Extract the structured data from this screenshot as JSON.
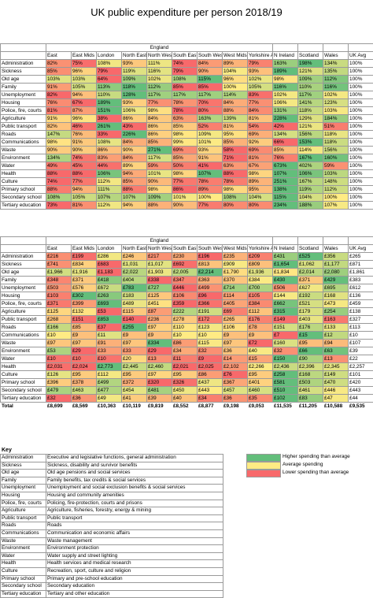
{
  "title": "UK public expenditure per person 2018/19",
  "group_label": "England",
  "columns": [
    "East",
    "East Mids",
    "London",
    "North East",
    "North West",
    "South East",
    "South West",
    "West Mids",
    "Yorkshire ATH",
    "N Ireland",
    "Scotland",
    "Wales",
    "UK Avg"
  ],
  "colors": {
    "high": "#63be7b",
    "average": "#ffeb84",
    "low": "#f8696b"
  },
  "legend": [
    {
      "label": "Higher spending than average",
      "color": "#63be7b"
    },
    {
      "label": "Average spending",
      "color": "#ffeb84"
    },
    {
      "label": "Lower spending than average",
      "color": "#f8696b"
    }
  ],
  "chart_data": [
    {
      "type": "table",
      "title": "UK public expenditure per person 2018/19",
      "columns": [
        "East",
        "East Mids",
        "London",
        "North East",
        "North West",
        "South East",
        "South West",
        "West Mids",
        "Yorkshire ATH",
        "N Ireland",
        "Scotland",
        "Wales",
        "UK Avg"
      ],
      "rows": [
        {
          "label": "Administration",
          "values": [
            "82%",
            "75%",
            "108%",
            "93%",
            "111%",
            "74%",
            "84%",
            "89%",
            "79%",
            "163%",
            "198%",
            "134%",
            "100%"
          ]
        },
        {
          "label": "Sickness",
          "values": [
            "85%",
            "96%",
            "79%",
            "119%",
            "116%",
            "79%",
            "90%",
            "104%",
            "93%",
            "189%",
            "121%",
            "135%",
            "100%"
          ]
        },
        {
          "label": "Old age",
          "values": [
            "103%",
            "103%",
            "64%",
            "109%",
            "102%",
            "108%",
            "115%",
            "96%",
            "102%",
            "98%",
            "109%",
            "112%",
            "100%"
          ]
        },
        {
          "label": "Family",
          "values": [
            "91%",
            "105%",
            "113%",
            "118%",
            "112%",
            "85%",
            "85%",
            "100%",
            "105%",
            "116%",
            "110%",
            "116%",
            "100%"
          ]
        },
        {
          "label": "Unemployment",
          "values": [
            "82%",
            "94%",
            "110%",
            "128%",
            "117%",
            "117%",
            "117%",
            "114%",
            "83%",
            "102%",
            "117%",
            "102%",
            "100%"
          ]
        },
        {
          "label": "Housing",
          "values": [
            "76%",
            "67%",
            "189%",
            "93%",
            "77%",
            "78%",
            "70%",
            "84%",
            "77%",
            "106%",
            "141%",
            "123%",
            "100%"
          ]
        },
        {
          "label": "Police, fire, courts",
          "values": [
            "81%",
            "87%",
            "151%",
            "106%",
            "98%",
            "78%",
            "80%",
            "88%",
            "84%",
            "131%",
            "118%",
            "103%",
            "100%"
          ]
        },
        {
          "label": "Agriculture",
          "values": [
            "91%",
            "96%",
            "38%",
            "86%",
            "84%",
            "63%",
            "163%",
            "139%",
            "81%",
            "228%",
            "129%",
            "184%",
            "100%"
          ]
        },
        {
          "label": "Public transport",
          "values": [
            "82%",
            "46%",
            "261%",
            "43%",
            "86%",
            "85%",
            "52%",
            "81%",
            "54%",
            "42%",
            "121%",
            "51%",
            "100%"
          ]
        },
        {
          "label": "Roads",
          "values": [
            "147%",
            "76%",
            "33%",
            "226%",
            "86%",
            "98%",
            "109%",
            "95%",
            "69%",
            "134%",
            "156%",
            "118%",
            "100%"
          ]
        },
        {
          "label": "Communications",
          "values": [
            "98%",
            "91%",
            "108%",
            "84%",
            "85%",
            "99%",
            "101%",
            "85%",
            "92%",
            "66%",
            "153%",
            "118%",
            "100%"
          ]
        },
        {
          "label": "Waste",
          "values": [
            "90%",
            "90%",
            "86%",
            "90%",
            "271%",
            "69%",
            "93%",
            "58%",
            "69%",
            "85%",
            "114%",
            "156%",
            "100%"
          ]
        },
        {
          "label": "Environment",
          "values": [
            "134%",
            "74%",
            "83%",
            "84%",
            "117%",
            "85%",
            "91%",
            "71%",
            "81%",
            "76%",
            "167%",
            "160%",
            "100%"
          ]
        },
        {
          "label": "Water",
          "values": [
            "49%",
            "45%",
            "44%",
            "89%",
            "59%",
            "50%",
            "41%",
            "63%",
            "67%",
            "673%",
            "402%",
            "59%",
            "100%"
          ]
        },
        {
          "label": "Health",
          "values": [
            "88%",
            "88%",
            "106%",
            "94%",
            "101%",
            "98%",
            "107%",
            "88%",
            "98%",
            "107%",
            "106%",
            "103%",
            "100%"
          ]
        },
        {
          "label": "Culture",
          "values": [
            "74%",
            "77%",
            "112%",
            "85%",
            "90%",
            "77%",
            "78%",
            "78%",
            "89%",
            "251%",
            "167%",
            "148%",
            "100%"
          ]
        },
        {
          "label": "Primary school",
          "values": [
            "88%",
            "94%",
            "111%",
            "88%",
            "98%",
            "86%",
            "89%",
            "98%",
            "95%",
            "138%",
            "119%",
            "112%",
            "100%"
          ]
        },
        {
          "label": "Secondary school",
          "values": [
            "108%",
            "105%",
            "107%",
            "107%",
            "109%",
            "101%",
            "100%",
            "108%",
            "104%",
            "115%",
            "104%",
            "100%",
            "100%"
          ]
        },
        {
          "label": "Tertiary education",
          "values": [
            "73%",
            "81%",
            "112%",
            "94%",
            "88%",
            "90%",
            "77%",
            "80%",
            "80%",
            "234%",
            "188%",
            "107%",
            "100%"
          ]
        }
      ]
    },
    {
      "type": "table",
      "columns": [
        "East",
        "East Mids",
        "London",
        "North East",
        "North West",
        "South East",
        "South West",
        "West Mids",
        "Yorkshire ATH",
        "N Ireland",
        "Scotland",
        "Wales",
        "UK Avg"
      ],
      "rows": [
        {
          "label": "Administration",
          "values": [
            "£216",
            "£199",
            "£286",
            "£246",
            "£217",
            "£230",
            "£196",
            "£235",
            "£209",
            "£431",
            "£525",
            "£356",
            "£265"
          ]
        },
        {
          "label": "Sickness",
          "values": [
            "£741",
            "£834",
            "£683",
            "£1,031",
            "£1,017",
            "£692",
            "£813",
            "£909",
            "£809",
            "£1,654",
            "£1,062",
            "£1,177",
            "£871"
          ]
        },
        {
          "label": "Old age",
          "values": [
            "£1,966",
            "£1,916",
            "£1,183",
            "£2,022",
            "£1,903",
            "£2,005",
            "£2,214",
            "£1,790",
            "£1,936",
            "£1,834",
            "£2,014",
            "£2,080",
            "£1,861"
          ]
        },
        {
          "label": "Family",
          "values": [
            "£348",
            "£371",
            "£418",
            "£404",
            "£338",
            "£347",
            "£363",
            "£370",
            "£384",
            "£430",
            "£371",
            "£429",
            "£383"
          ]
        },
        {
          "label": "Unemployment",
          "values": [
            "£503",
            "£576",
            "£672",
            "£783",
            "£727",
            "£446",
            "£499",
            "£714",
            "£700",
            "£506",
            "£627",
            "£695",
            "£612"
          ]
        },
        {
          "label": "Housing",
          "values": [
            "£103",
            "£302",
            "£263",
            "£183",
            "£125",
            "£106",
            "£96",
            "£114",
            "£105",
            "£144",
            "£192",
            "£168",
            "£136"
          ]
        },
        {
          "label": "Police, fire, courts",
          "values": [
            "£371",
            "£399",
            "£693",
            "£489",
            "£451",
            "£359",
            "£366",
            "£405",
            "£384",
            "£662",
            "£521",
            "£473",
            "£459"
          ]
        },
        {
          "label": "Agriculture",
          "values": [
            "£125",
            "£132",
            "£53",
            "£115",
            "£87",
            "£222",
            "£191",
            "£69",
            "£112",
            "£315",
            "£179",
            "£254",
            "£138"
          ]
        },
        {
          "label": "Public transport",
          "values": [
            "£268",
            "£151",
            "£853",
            "£140",
            "£236",
            "£278",
            "£172",
            "£265",
            "£176",
            "£149",
            "£403",
            "£163",
            "£327"
          ]
        },
        {
          "label": "Roads",
          "values": [
            "£166",
            "£85",
            "£37",
            "£255",
            "£97",
            "£110",
            "£123",
            "£106",
            "£78",
            "£151",
            "£176",
            "£133",
            "£113"
          ]
        },
        {
          "label": "Communications",
          "values": [
            "£10",
            "£9",
            "£11",
            "£9",
            "£9",
            "£10",
            "£10",
            "£9",
            "£9",
            "£7",
            "£15",
            "£12",
            "£10"
          ]
        },
        {
          "label": "Waste",
          "values": [
            "£97",
            "£97",
            "£91",
            "£97",
            "£334",
            "£86",
            "£115",
            "£97",
            "£72",
            "£160",
            "£95",
            "£94",
            "£107"
          ]
        },
        {
          "label": "Environment",
          "values": [
            "£53",
            "£29",
            "£33",
            "£33",
            "£29",
            "£34",
            "£32",
            "£36",
            "£40",
            "£32",
            "£66",
            "£63",
            "£39"
          ]
        },
        {
          "label": "Water",
          "values": [
            "£10",
            "£10",
            "£10",
            "£20",
            "£13",
            "£11",
            "£9",
            "£14",
            "£15",
            "£150",
            "£90",
            "£13",
            "£22"
          ]
        },
        {
          "label": "Health",
          "values": [
            "£2,031",
            "£2,024",
            "£2,773",
            "£2,445",
            "£2,460",
            "£2,021",
            "£2,025",
            "£2,102",
            "£2,266",
            "£2,436",
            "£2,396",
            "£2,345",
            "£2,257"
          ]
        },
        {
          "label": "Culture",
          "values": [
            "£126",
            "£95",
            "£112",
            "£95",
            "£97",
            "£95",
            "£86",
            "£76",
            "£95",
            "£258",
            "£168",
            "£149",
            "£101"
          ]
        },
        {
          "label": "Primary school",
          "values": [
            "£396",
            "£378",
            "£499",
            "£372",
            "£320",
            "£326",
            "£437",
            "£367",
            "£401",
            "£581",
            "£503",
            "£470",
            "£420"
          ]
        },
        {
          "label": "Secondary school",
          "values": [
            "£479",
            "£463",
            "£477",
            "£454",
            "£481",
            "£450",
            "£443",
            "£457",
            "£460",
            "£510",
            "£461",
            "£446",
            "£443"
          ]
        },
        {
          "label": "Tertiary education",
          "values": [
            "£32",
            "£36",
            "£49",
            "£41",
            "£39",
            "£40",
            "£34",
            "£36",
            "£35",
            "£102",
            "£83",
            "£47",
            "£44"
          ]
        },
        {
          "label": "Total",
          "values": [
            "£8,699",
            "£8,569",
            "£10,363",
            "£10,119",
            "£9,819",
            "£8,552",
            "£8,877",
            "£9,198",
            "£9,053",
            "£11,535",
            "£11,205",
            "£10,588",
            "£9,535"
          ]
        }
      ]
    }
  ],
  "key": {
    "title": "Key",
    "items": [
      {
        "term": "Administration",
        "desc": "Executive and legislative functions, general administration"
      },
      {
        "term": "Sickness",
        "desc": "Sickness, disability and survivor benefits"
      },
      {
        "term": "Old age",
        "desc": "Old age pensions and social services"
      },
      {
        "term": "Family",
        "desc": "Family benefits, tax credits & social services"
      },
      {
        "term": "Unemployment",
        "desc": "Unemployment and social exclusion benefits & social services"
      },
      {
        "term": "Housing",
        "desc": "Housing and community amenities"
      },
      {
        "term": "Police, fire, courts",
        "desc": "Policing, fire-protection, courts and prisons"
      },
      {
        "term": "Agriculture",
        "desc": "Agriculture, fisheries, forestry, energy & mining"
      },
      {
        "term": "Public transport",
        "desc": "Public transport"
      },
      {
        "term": "Roads",
        "desc": "Roads"
      },
      {
        "term": "Communications",
        "desc": "Communication and economic affairs"
      },
      {
        "term": "Waste",
        "desc": "Waste management"
      },
      {
        "term": "Environment",
        "desc": "Environment protection"
      },
      {
        "term": "Water",
        "desc": "Water supply and street lighting"
      },
      {
        "term": "Health",
        "desc": "Health services and medical research"
      },
      {
        "term": "Culture",
        "desc": "Recreation, sport, culture and religion"
      },
      {
        "term": "Primary school",
        "desc": "Primary and pre-school education"
      },
      {
        "term": "Secondary school",
        "desc": "Secondary education"
      },
      {
        "term": "Tertiary education",
        "desc": "Tertiary and other education"
      }
    ]
  }
}
